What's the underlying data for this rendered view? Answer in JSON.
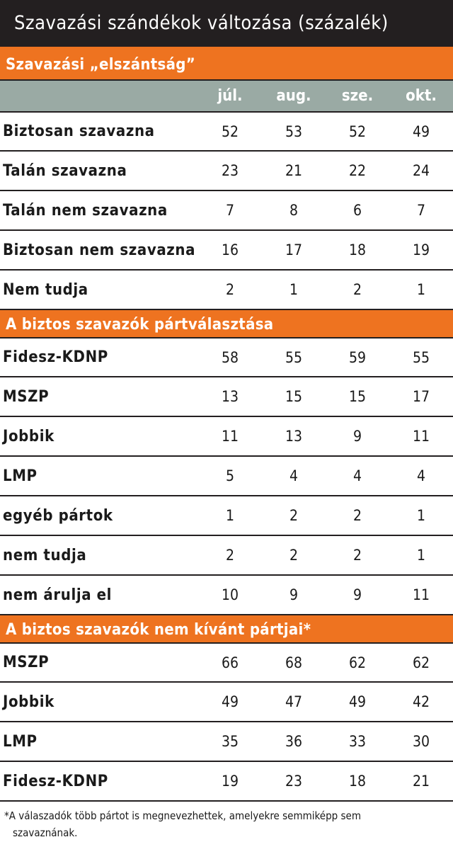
{
  "title": "Szavazási szándékok változása (százalék)",
  "columns": [
    "júl.",
    "aug.",
    "sze.",
    "okt."
  ],
  "sections": [
    {
      "title": "Szavazási „elszántság”",
      "rows": [
        {
          "label": "Biztosan szavazna",
          "values": [
            "52",
            "53",
            "52",
            "49"
          ]
        },
        {
          "label": "Talán szavazna",
          "values": [
            "23",
            "21",
            "22",
            "24"
          ]
        },
        {
          "label": "Talán nem szavazna",
          "values": [
            "7",
            "8",
            "6",
            "7"
          ]
        },
        {
          "label": "Biztosan nem szavazna",
          "values": [
            "16",
            "17",
            "18",
            "19"
          ]
        },
        {
          "label": "Nem tudja",
          "values": [
            "2",
            "1",
            "2",
            "1"
          ]
        }
      ]
    },
    {
      "title": "A biztos szavazók pártválasztása",
      "rows": [
        {
          "label": "Fidesz-KDNP",
          "values": [
            "58",
            "55",
            "59",
            "55"
          ]
        },
        {
          "label": "MSZP",
          "values": [
            "13",
            "15",
            "15",
            "17"
          ]
        },
        {
          "label": "Jobbik",
          "values": [
            "11",
            "13",
            "9",
            "11"
          ]
        },
        {
          "label": "LMP",
          "values": [
            "5",
            "4",
            "4",
            "4"
          ]
        },
        {
          "label": "egyéb pártok",
          "values": [
            "1",
            "2",
            "2",
            "1"
          ]
        },
        {
          "label": "nem tudja",
          "values": [
            "2",
            "2",
            "2",
            "1"
          ]
        },
        {
          "label": "nem árulja el",
          "values": [
            "10",
            "9",
            "9",
            "11"
          ]
        }
      ]
    },
    {
      "title": "A biztos szavazók nem kívánt pártjai*",
      "rows": [
        {
          "label": "MSZP",
          "values": [
            "66",
            "68",
            "62",
            "62"
          ]
        },
        {
          "label": "Jobbik",
          "values": [
            "49",
            "47",
            "49",
            "42"
          ]
        },
        {
          "label": "LMP",
          "values": [
            "35",
            "36",
            "33",
            "30"
          ]
        },
        {
          "label": "Fidesz-KDNP",
          "values": [
            "19",
            "23",
            "18",
            "21"
          ]
        }
      ]
    }
  ],
  "footnote": {
    "line1": "*A válaszadók több pártot is megnevezhettek, amelyekre semmiképp sem",
    "line2": "szavaznának."
  },
  "colors": {
    "orange": "#ee7320",
    "dark": "#231f20",
    "header_gray": "#9aaaa4"
  }
}
